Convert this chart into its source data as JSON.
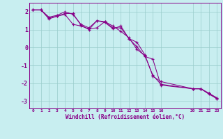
{
  "xlabel": "Windchill (Refroidissement éolien,°C)",
  "background_color": "#c8eef0",
  "line_color": "#880088",
  "grid_color": "#99cccc",
  "spine_color": "#880088",
  "xlim": [
    -0.5,
    23.5
  ],
  "ylim": [
    -3.4,
    2.5
  ],
  "yticks": [
    -3,
    -2,
    -1,
    0,
    1,
    2
  ],
  "xtick_positions": [
    0,
    1,
    2,
    3,
    4,
    5,
    6,
    7,
    8,
    9,
    10,
    11,
    12,
    13,
    14,
    15,
    16,
    20,
    21,
    22,
    23
  ],
  "xtick_labels": [
    "0",
    "1",
    "2",
    "3",
    "4",
    "5",
    "6",
    "7",
    "8",
    "9",
    "10",
    "11",
    "12",
    "13",
    "14",
    "15",
    "16",
    "20",
    "21",
    "22",
    "23"
  ],
  "series1_x": [
    0,
    1,
    2,
    3,
    4,
    5,
    6,
    7,
    8,
    9,
    10,
    11,
    12,
    13,
    14,
    15,
    16,
    20,
    21,
    22,
    23
  ],
  "series1_y": [
    2.1,
    2.1,
    1.7,
    1.8,
    2.0,
    1.85,
    1.3,
    1.1,
    1.5,
    1.45,
    1.1,
    1.1,
    0.5,
    0.3,
    -0.4,
    -1.6,
    -1.9,
    -2.3,
    -2.3,
    -2.55,
    -2.8
  ],
  "series2_x": [
    0,
    1,
    2,
    3,
    4,
    5,
    6,
    7,
    8,
    9,
    10,
    11,
    12,
    13,
    14,
    15,
    16,
    20,
    21,
    22,
    23
  ],
  "series2_y": [
    2.1,
    2.1,
    1.65,
    1.75,
    1.85,
    1.3,
    1.2,
    1.05,
    1.1,
    1.45,
    1.2,
    0.9,
    0.55,
    -0.1,
    -0.45,
    -1.55,
    -2.05,
    -2.3,
    -2.3,
    -2.6,
    -2.85
  ],
  "series3_x": [
    0,
    1,
    2,
    3,
    4,
    5,
    6,
    7,
    8,
    9,
    10,
    11,
    12,
    13,
    14,
    15,
    16,
    20,
    21,
    22,
    23
  ],
  "series3_y": [
    2.1,
    2.1,
    1.6,
    1.75,
    1.9,
    1.9,
    1.25,
    1.0,
    1.5,
    1.4,
    1.05,
    1.2,
    0.5,
    0.05,
    -0.5,
    -0.65,
    -2.1,
    -2.3,
    -2.3,
    -2.55,
    -2.85
  ]
}
